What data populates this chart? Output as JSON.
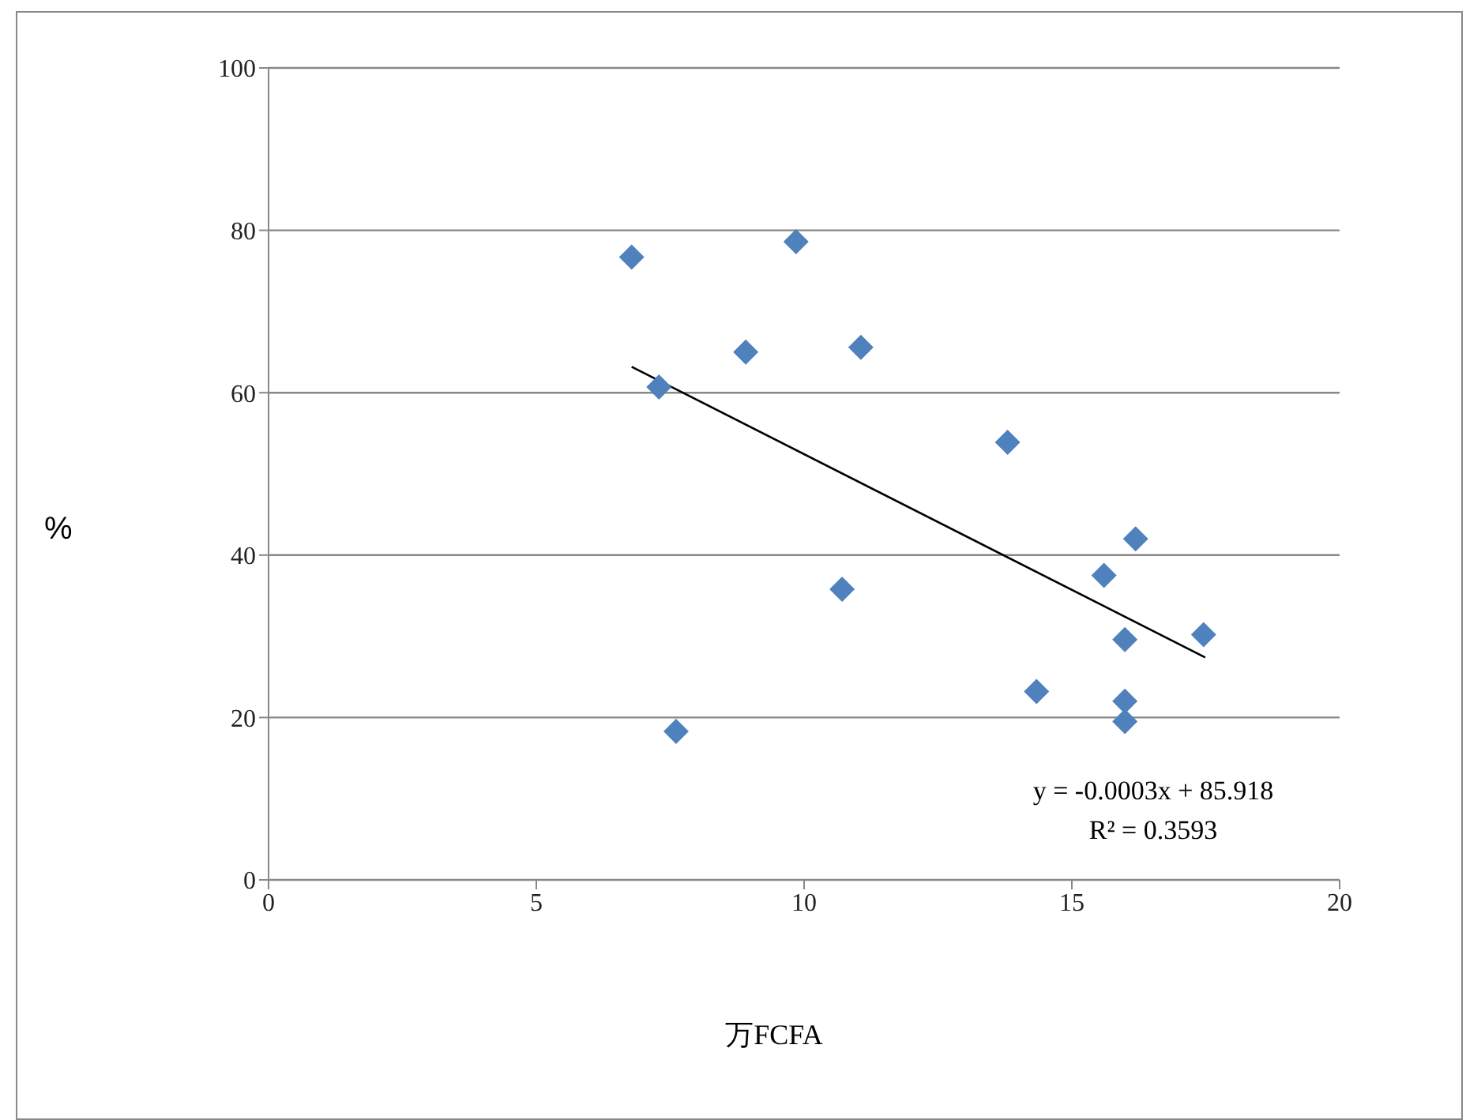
{
  "chart_data": {
    "type": "scatter",
    "xlabel": "万FCFA",
    "ylabel": "%",
    "xlim": [
      0,
      20
    ],
    "xticks": [
      0,
      5,
      10,
      15,
      20
    ],
    "ylim": [
      0,
      100
    ],
    "yticks": [
      0,
      20,
      40,
      60,
      80,
      100
    ],
    "grid": "y",
    "marker": "diamond",
    "series": [
      {
        "color": "#4f81bd",
        "x": [
          6.78,
          7.29,
          7.61,
          8.91,
          9.85,
          10.71,
          11.06,
          13.8,
          14.34,
          15.6,
          15.99,
          15.99,
          15.99,
          16.19,
          17.46
        ],
        "values": [
          76.7,
          60.7,
          18.3,
          65.0,
          78.6,
          35.8,
          65.6,
          53.9,
          23.2,
          37.5,
          29.6,
          22.0,
          19.5,
          42.0,
          30.2
        ]
      },
      {
        "type": "line",
        "color": "#000000",
        "marker": "none",
        "x": [
          6.78,
          17.49
        ],
        "values": [
          63.2,
          27.4
        ]
      }
    ],
    "annotations": [
      "y = -0.0003x + 85.918",
      "R² = 0.3593"
    ]
  }
}
